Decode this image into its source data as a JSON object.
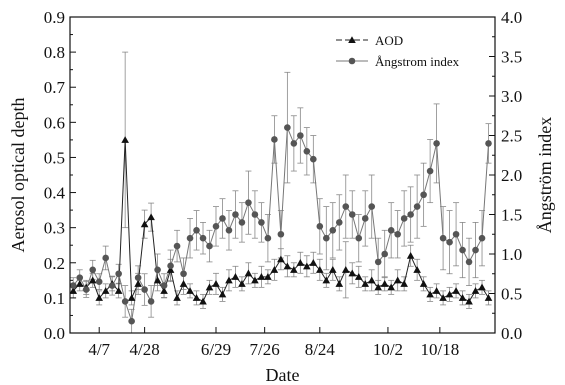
{
  "chart_data": {
    "type": "line",
    "xlabel": "Date",
    "ylabel_left": "Aerosol optical depth",
    "ylabel_right": "Ångström index",
    "x_tick_labels": [
      "4/7",
      "4/28",
      "6/29",
      "7/26",
      "8/24",
      "10/2",
      "10/18"
    ],
    "x_tick_positions": [
      9,
      23,
      45,
      60,
      77,
      98,
      114
    ],
    "x_range": [
      0,
      131
    ],
    "ylim_left": [
      0.0,
      0.9
    ],
    "ylim_right": [
      0.0,
      4.0
    ],
    "yticks_left": [
      "0.0",
      "0.1",
      "0.2",
      "0.3",
      "0.4",
      "0.5",
      "0.6",
      "0.7",
      "0.8",
      "0.9"
    ],
    "yticks_right": [
      "0.0",
      "0.5",
      "1.0",
      "1.5",
      "2.0",
      "2.5",
      "3.0",
      "3.5",
      "4.0"
    ],
    "legend_position": "top-right",
    "series": [
      {
        "name": "AOD",
        "axis": "left",
        "marker": "triangle",
        "color": "#111111",
        "x": [
          1,
          3,
          5,
          7,
          9,
          11,
          13,
          15,
          17,
          19,
          21,
          23,
          25,
          27,
          29,
          31,
          33,
          35,
          37,
          39,
          41,
          43,
          45,
          47,
          49,
          51,
          53,
          55,
          57,
          59,
          61,
          63,
          65,
          67,
          69,
          71,
          73,
          75,
          77,
          79,
          81,
          83,
          85,
          87,
          89,
          91,
          93,
          95,
          97,
          99,
          101,
          103,
          105,
          107,
          109,
          111,
          113,
          115,
          117,
          119,
          121,
          123,
          125,
          127,
          129
        ],
        "y": [
          0.12,
          0.14,
          0.13,
          0.15,
          0.1,
          0.12,
          0.14,
          0.12,
          0.55,
          0.1,
          0.14,
          0.31,
          0.33,
          0.15,
          0.12,
          0.18,
          0.1,
          0.14,
          0.12,
          0.1,
          0.09,
          0.13,
          0.14,
          0.11,
          0.15,
          0.16,
          0.14,
          0.17,
          0.15,
          0.16,
          0.16,
          0.18,
          0.21,
          0.19,
          0.18,
          0.2,
          0.19,
          0.2,
          0.18,
          0.15,
          0.18,
          0.14,
          0.18,
          0.17,
          0.16,
          0.14,
          0.15,
          0.13,
          0.14,
          0.13,
          0.15,
          0.14,
          0.22,
          0.18,
          0.14,
          0.11,
          0.12,
          0.1,
          0.11,
          0.12,
          0.1,
          0.09,
          0.12,
          0.13,
          0.1
        ],
        "err": [
          0.02,
          0.02,
          0.02,
          0.02,
          0.02,
          0.02,
          0.02,
          0.02,
          0.25,
          0.02,
          0.03,
          0.04,
          0.04,
          0.03,
          0.02,
          0.03,
          0.02,
          0.03,
          0.02,
          0.02,
          0.02,
          0.02,
          0.03,
          0.02,
          0.03,
          0.03,
          0.02,
          0.03,
          0.02,
          0.03,
          0.02,
          0.03,
          0.03,
          0.03,
          0.02,
          0.03,
          0.03,
          0.03,
          0.03,
          0.02,
          0.03,
          0.02,
          0.08,
          0.03,
          0.03,
          0.02,
          0.03,
          0.02,
          0.02,
          0.02,
          0.03,
          0.02,
          0.03,
          0.03,
          0.02,
          0.02,
          0.02,
          0.02,
          0.02,
          0.02,
          0.02,
          0.02,
          0.02,
          0.02,
          0.02
        ]
      },
      {
        "name": "Ångstrom index",
        "axis": "right",
        "marker": "circle",
        "color": "#555555",
        "x": [
          1,
          3,
          5,
          7,
          9,
          11,
          13,
          15,
          17,
          19,
          21,
          23,
          25,
          27,
          29,
          31,
          33,
          35,
          37,
          39,
          41,
          43,
          45,
          47,
          49,
          51,
          53,
          55,
          57,
          59,
          61,
          63,
          65,
          67,
          69,
          71,
          73,
          75,
          77,
          79,
          81,
          83,
          85,
          87,
          89,
          91,
          93,
          95,
          97,
          99,
          101,
          103,
          105,
          107,
          109,
          111,
          113,
          115,
          117,
          119,
          121,
          123,
          125,
          127,
          129
        ],
        "y": [
          0.6,
          0.7,
          0.55,
          0.8,
          0.65,
          0.95,
          0.6,
          0.75,
          0.4,
          0.15,
          0.7,
          0.55,
          0.4,
          0.8,
          0.6,
          0.85,
          1.1,
          0.75,
          1.2,
          1.3,
          1.2,
          1.1,
          1.35,
          1.45,
          1.3,
          1.5,
          1.4,
          1.65,
          1.5,
          1.4,
          1.2,
          2.45,
          1.25,
          2.6,
          2.4,
          2.5,
          2.3,
          2.2,
          1.35,
          1.2,
          1.3,
          1.4,
          1.6,
          1.5,
          1.2,
          1.45,
          1.6,
          0.9,
          1.0,
          1.3,
          1.25,
          1.45,
          1.5,
          1.6,
          1.75,
          2.05,
          2.4,
          1.2,
          1.15,
          1.25,
          1.05,
          0.9,
          1.05,
          1.2,
          2.4
        ],
        "err": [
          0.1,
          0.1,
          0.1,
          0.12,
          0.1,
          0.15,
          0.12,
          0.12,
          0.2,
          0.15,
          0.15,
          0.2,
          0.2,
          0.2,
          0.15,
          0.2,
          0.2,
          0.2,
          0.25,
          0.25,
          0.2,
          0.2,
          0.25,
          0.25,
          0.25,
          0.3,
          0.25,
          0.4,
          0.3,
          0.25,
          0.3,
          0.3,
          0.3,
          0.7,
          0.35,
          0.35,
          0.3,
          0.3,
          0.35,
          0.4,
          0.35,
          0.35,
          0.4,
          0.3,
          0.3,
          0.35,
          0.4,
          0.3,
          0.3,
          0.35,
          0.3,
          0.35,
          0.35,
          0.4,
          0.4,
          0.4,
          0.5,
          0.4,
          0.4,
          0.4,
          0.35,
          0.3,
          0.35,
          0.35,
          0.25
        ]
      }
    ]
  }
}
